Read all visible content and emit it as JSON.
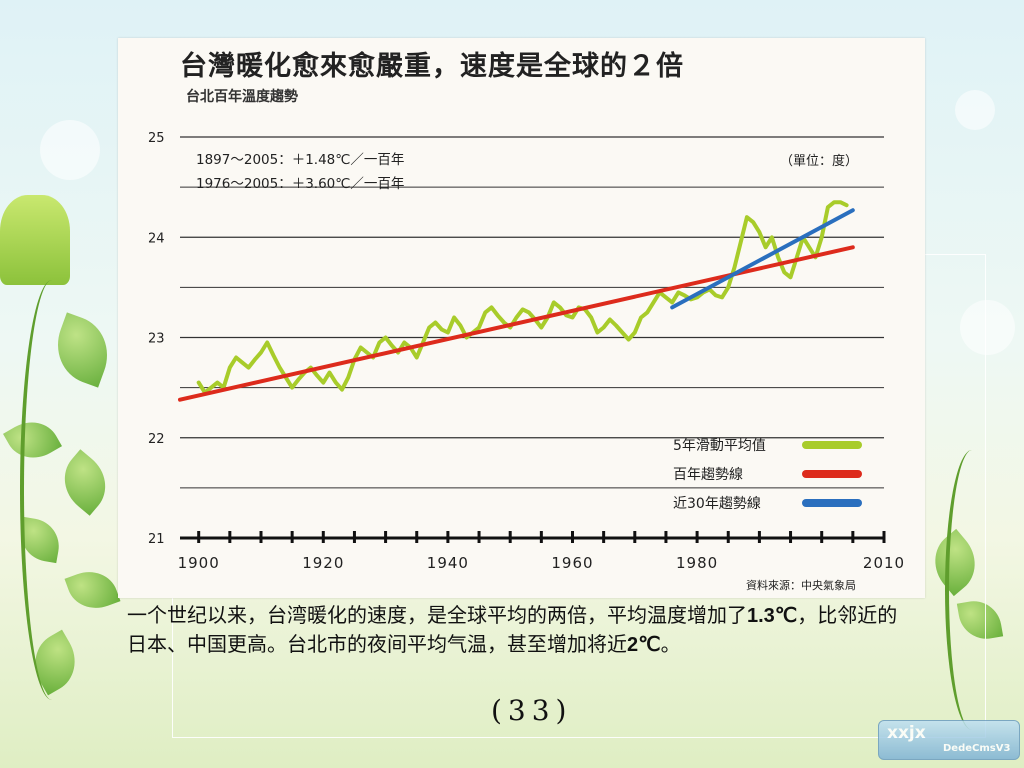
{
  "slide": {
    "caption_parts": [
      "一个世纪以来，台湾暖化的速度，是全球平均的两倍，平均温度增加了",
      "1.3℃",
      "，比邻近的日本、中国更高。台北市的夜间平均气温，甚至增加将近",
      "2℃",
      "。"
    ],
    "page_number": "(33)",
    "watermark_line1": "xxjx",
    "watermark_line2": "DedeCmsV3"
  },
  "chart_data": {
    "type": "line",
    "title": "台灣暖化愈來愈嚴重，速度是全球的２倍",
    "subtitle": "台北百年溫度趨勢",
    "annotations": [
      "1897～2005：＋1.48℃／一百年",
      "1976～2005：＋3.60℃／一百年"
    ],
    "unit_label": "（單位：度）",
    "source": "資料來源：中央氣象局",
    "xlim": [
      1897,
      2010
    ],
    "ylim": [
      21,
      25
    ],
    "x_ticks": [
      1900,
      1920,
      1940,
      1960,
      1980,
      2010
    ],
    "y_ticks": [
      21,
      22,
      23,
      24,
      25
    ],
    "grid": true,
    "legend_position": "bottom-right",
    "series": [
      {
        "name": "5年滑動平均值",
        "color": "#a8cc2a",
        "x": [
          1900,
          1901,
          1902,
          1903,
          1904,
          1905,
          1906,
          1907,
          1908,
          1909,
          1910,
          1911,
          1912,
          1913,
          1914,
          1915,
          1916,
          1917,
          1918,
          1919,
          1920,
          1921,
          1922,
          1923,
          1924,
          1925,
          1926,
          1927,
          1928,
          1929,
          1930,
          1931,
          1932,
          1933,
          1934,
          1935,
          1936,
          1937,
          1938,
          1939,
          1940,
          1941,
          1942,
          1943,
          1944,
          1945,
          1946,
          1947,
          1948,
          1949,
          1950,
          1951,
          1952,
          1953,
          1954,
          1955,
          1956,
          1957,
          1958,
          1959,
          1960,
          1961,
          1962,
          1963,
          1964,
          1965,
          1966,
          1967,
          1968,
          1969,
          1970,
          1971,
          1972,
          1973,
          1974,
          1975,
          1976,
          1977,
          1978,
          1979,
          1980,
          1981,
          1982,
          1983,
          1984,
          1985,
          1986,
          1987,
          1988,
          1989,
          1990,
          1991,
          1992,
          1993,
          1994,
          1995,
          1996,
          1997,
          1998,
          1999,
          2000,
          2001,
          2002,
          2003,
          2004
        ],
        "values": [
          22.55,
          22.45,
          22.5,
          22.55,
          22.5,
          22.7,
          22.8,
          22.75,
          22.7,
          22.78,
          22.85,
          22.95,
          22.82,
          22.7,
          22.6,
          22.5,
          22.58,
          22.65,
          22.7,
          22.62,
          22.55,
          22.65,
          22.55,
          22.48,
          22.6,
          22.78,
          22.9,
          22.85,
          22.8,
          22.95,
          23.0,
          22.92,
          22.85,
          22.95,
          22.9,
          22.8,
          22.95,
          23.1,
          23.15,
          23.08,
          23.05,
          23.2,
          23.12,
          23.0,
          23.05,
          23.1,
          23.25,
          23.3,
          23.22,
          23.15,
          23.1,
          23.2,
          23.28,
          23.25,
          23.18,
          23.1,
          23.2,
          23.35,
          23.3,
          23.22,
          23.2,
          23.3,
          23.28,
          23.2,
          23.05,
          23.1,
          23.18,
          23.12,
          23.05,
          22.98,
          23.05,
          23.2,
          23.25,
          23.35,
          23.45,
          23.4,
          23.35,
          23.45,
          23.42,
          23.38,
          23.4,
          23.45,
          23.48,
          23.42,
          23.4,
          23.5,
          23.7,
          23.95,
          24.2,
          24.15,
          24.05,
          23.9,
          24.0,
          23.8,
          23.65,
          23.6,
          23.8,
          24.0,
          23.9,
          23.8,
          24.0,
          24.3,
          24.35,
          24.35,
          24.32
        ]
      },
      {
        "name": "百年趨勢線",
        "color": "#dd2b1c",
        "x": [
          1897,
          2005
        ],
        "values": [
          22.38,
          23.9
        ]
      },
      {
        "name": "近30年趨勢線",
        "color": "#2a6fbe",
        "x": [
          1976,
          2005
        ],
        "values": [
          23.3,
          24.27
        ]
      }
    ]
  }
}
